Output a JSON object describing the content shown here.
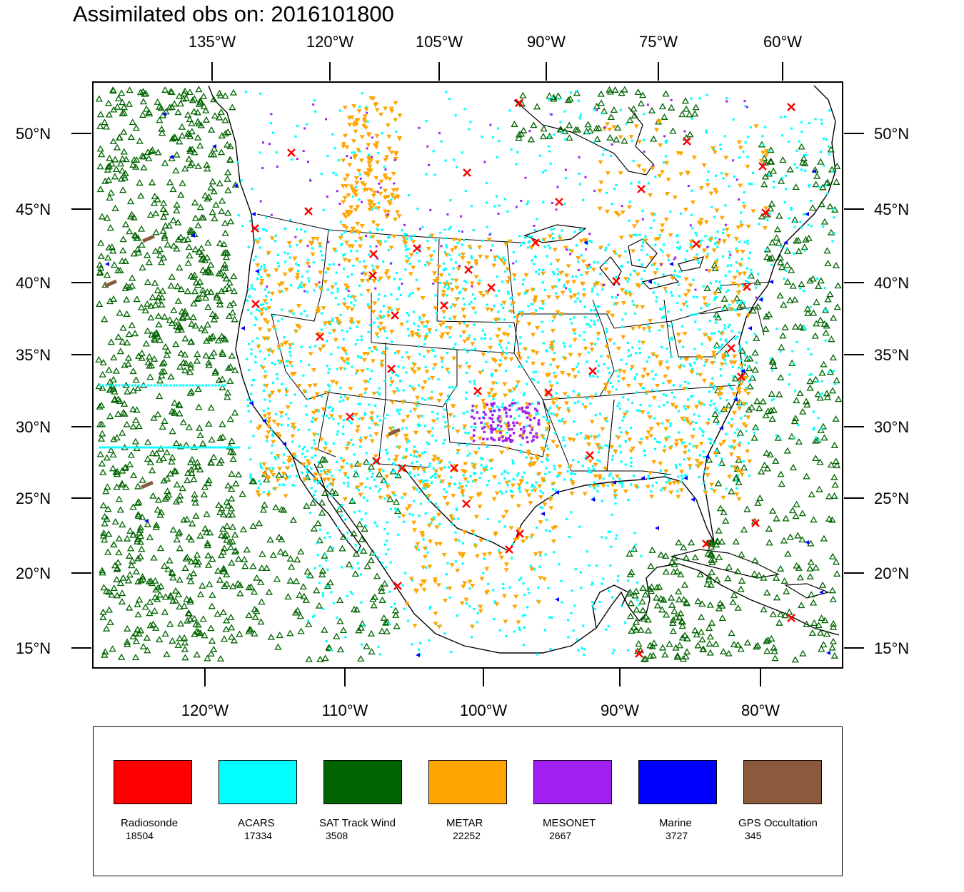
{
  "title": "Assimilated obs on: 2016101800",
  "top_lon_labels": [
    "135°W",
    "120°W",
    "105°W",
    "90°W",
    "75°W",
    "60°W"
  ],
  "bottom_lon_labels": [
    "120°W",
    "110°W",
    "100°W",
    "90°W",
    "80°W"
  ],
  "lat_labels": [
    "50°N",
    "45°N",
    "40°N",
    "35°N",
    "30°N",
    "25°N",
    "20°N",
    "15°N"
  ],
  "colors": {
    "radiosonde": "#ff0000",
    "acars": "#00ffff",
    "sat_track_wind": "#006400",
    "metar": "#ffa500",
    "mesonet": "#a020f0",
    "marine": "#0000ff",
    "gps": "#8b5a3c"
  },
  "legend": [
    {
      "name": "Radiosonde",
      "count": "18504",
      "color": "#ff0000"
    },
    {
      "name": "ACARS",
      "count": "17334",
      "color": "#00ffff"
    },
    {
      "name": "SAT Track Wind",
      "count": "3508",
      "color": "#006400"
    },
    {
      "name": "METAR",
      "count": "22252",
      "color": "#ffa500"
    },
    {
      "name": "MESONET",
      "count": "2667",
      "color": "#a020f0"
    },
    {
      "name": "Marine",
      "count": "3727",
      "color": "#0000ff"
    },
    {
      "name": "GPS Occultation",
      "count": "345",
      "color": "#8b5a3c"
    }
  ]
}
